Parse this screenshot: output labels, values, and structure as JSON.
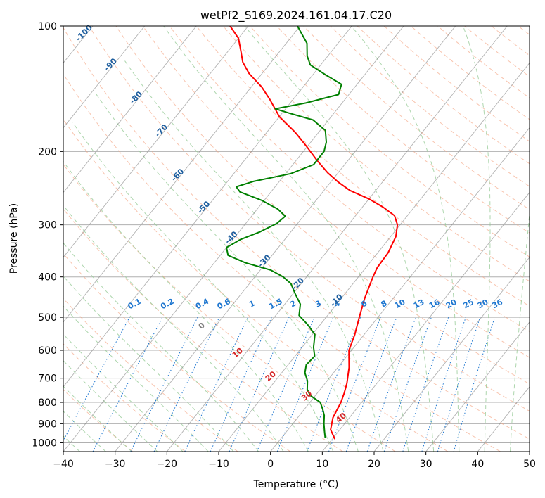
{
  "chart_data": {
    "type": "line",
    "title": "wetPf2_S169.2024.161.04.17.C20",
    "xlabel": "Temperature (°C)",
    "ylabel": "Pressure (hPa)",
    "xlim": [
      -40,
      50
    ],
    "ylim": [
      1050,
      100
    ],
    "y_scale": "log",
    "grid": true,
    "x_ticks": [
      "−40",
      "−30",
      "−20",
      "−10",
      "0",
      "10",
      "20",
      "30",
      "40",
      "50"
    ],
    "y_ticks": [
      "100",
      "200",
      "300",
      "400",
      "500",
      "600",
      "700",
      "800",
      "900",
      "1000"
    ],
    "series": [
      {
        "color": "#ff0000",
        "points": [
          {
            "p": 980,
            "t": 10.5
          },
          {
            "p": 930,
            "t": 8.2
          },
          {
            "p": 870,
            "t": 6.8
          },
          {
            "p": 800,
            "t": 6.0
          },
          {
            "p": 760,
            "t": 5.2
          },
          {
            "p": 720,
            "t": 4.2
          },
          {
            "p": 660,
            "t": 2.2
          },
          {
            "p": 600,
            "t": -0.5
          },
          {
            "p": 550,
            "t": -1.8
          },
          {
            "p": 500,
            "t": -3.6
          },
          {
            "p": 450,
            "t": -5.5
          },
          {
            "p": 400,
            "t": -7.2
          },
          {
            "p": 380,
            "t": -7.8
          },
          {
            "p": 350,
            "t": -8.0
          },
          {
            "p": 320,
            "t": -9.0
          },
          {
            "p": 300,
            "t": -10.5
          },
          {
            "p": 285,
            "t": -12.5
          },
          {
            "p": 272,
            "t": -16.0
          },
          {
            "p": 260,
            "t": -20.0
          },
          {
            "p": 248,
            "t": -25.0
          },
          {
            "p": 237,
            "t": -28.5
          },
          {
            "p": 225,
            "t": -32.0
          },
          {
            "p": 210,
            "t": -36.0
          },
          {
            "p": 195,
            "t": -40.0
          },
          {
            "p": 180,
            "t": -44.5
          },
          {
            "p": 165,
            "t": -50.0
          },
          {
            "p": 150,
            "t": -54.5
          },
          {
            "p": 140,
            "t": -58.0
          },
          {
            "p": 130,
            "t": -62.5
          },
          {
            "p": 122,
            "t": -65.5
          },
          {
            "p": 115,
            "t": -67.5
          },
          {
            "p": 107,
            "t": -70.0
          },
          {
            "p": 100,
            "t": -73.5
          }
        ]
      },
      {
        "color": "#008000",
        "points": [
          {
            "p": 975,
            "t": 8.5
          },
          {
            "p": 945,
            "t": 7.5
          },
          {
            "p": 900,
            "t": 6.0
          },
          {
            "p": 860,
            "t": 4.8
          },
          {
            "p": 830,
            "t": 3.5
          },
          {
            "p": 800,
            "t": 2.0
          },
          {
            "p": 770,
            "t": -1.0
          },
          {
            "p": 745,
            "t": -2.5
          },
          {
            "p": 710,
            "t": -3.8
          },
          {
            "p": 680,
            "t": -5.5
          },
          {
            "p": 650,
            "t": -6.5
          },
          {
            "p": 620,
            "t": -6.2
          },
          {
            "p": 590,
            "t": -7.8
          },
          {
            "p": 550,
            "t": -9.5
          },
          {
            "p": 520,
            "t": -12.5
          },
          {
            "p": 495,
            "t": -15.5
          },
          {
            "p": 465,
            "t": -17.0
          },
          {
            "p": 440,
            "t": -19.5
          },
          {
            "p": 415,
            "t": -22.0
          },
          {
            "p": 400,
            "t": -24.5
          },
          {
            "p": 385,
            "t": -28.0
          },
          {
            "p": 370,
            "t": -34.0
          },
          {
            "p": 355,
            "t": -38.5
          },
          {
            "p": 340,
            "t": -40.0
          },
          {
            "p": 325,
            "t": -38.5
          },
          {
            "p": 312,
            "t": -36.0
          },
          {
            "p": 298,
            "t": -34.0
          },
          {
            "p": 286,
            "t": -33.5
          },
          {
            "p": 275,
            "t": -36.0
          },
          {
            "p": 262,
            "t": -40.5
          },
          {
            "p": 250,
            "t": -46.0
          },
          {
            "p": 243,
            "t": -47.5
          },
          {
            "p": 236,
            "t": -45.0
          },
          {
            "p": 226,
            "t": -39.0
          },
          {
            "p": 215,
            "t": -36.0
          },
          {
            "p": 200,
            "t": -36.0
          },
          {
            "p": 190,
            "t": -37.0
          },
          {
            "p": 178,
            "t": -39.0
          },
          {
            "p": 168,
            "t": -43.0
          },
          {
            "p": 162,
            "t": -48.5
          },
          {
            "p": 158,
            "t": -52.0
          },
          {
            "p": 153,
            "t": -47.0
          },
          {
            "p": 146,
            "t": -42.0
          },
          {
            "p": 138,
            "t": -43.0
          },
          {
            "p": 131,
            "t": -47.5
          },
          {
            "p": 124,
            "t": -52.0
          },
          {
            "p": 118,
            "t": -54.0
          },
          {
            "p": 110,
            "t": -56.0
          },
          {
            "p": 100,
            "t": -60.5
          }
        ]
      }
    ],
    "dry_adiabat_labels": [
      "-100",
      "-90",
      "-80",
      "-70",
      "-60",
      "-50",
      "-40",
      "-30",
      "-20",
      "-10"
    ],
    "mixing_ratio_labels": [
      "0.1",
      "0.2",
      "0.4",
      "0.6",
      "1",
      "1.5",
      "2",
      "3",
      "4",
      "6",
      "8",
      "10",
      "13",
      "16",
      "20",
      "25",
      "30",
      "36"
    ],
    "moist_adiabat_labels": [
      "0",
      "10",
      "20",
      "30",
      "40"
    ],
    "colors": {
      "temperature": "#ff0000",
      "dewpoint": "#008000",
      "isotherm": "#808080",
      "dry_adiabat": "#f4a582",
      "moist_adiabat": "#99cc99",
      "mixing_ratio": "#1f77d0",
      "dry_label": "#1f5f9f",
      "moist_label": "#d62728",
      "zero_label": "#808080"
    }
  }
}
